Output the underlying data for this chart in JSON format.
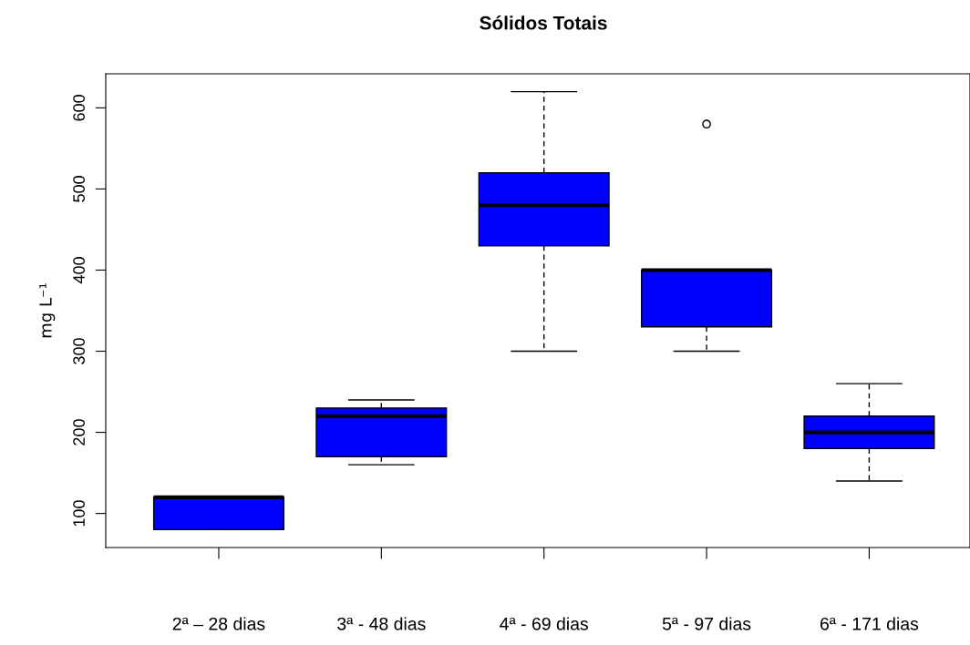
{
  "chart_data": {
    "type": "box",
    "title": "Sólidos Totais",
    "ylabel": "mg L⁻¹",
    "categories": [
      "2ª – 28 dias",
      "3ª - 48 dias",
      "4ª - 69 dias",
      "5ª - 97 dias",
      "6ª - 171 dias"
    ],
    "color": "#0000ff",
    "boxes": [
      {
        "low": 80,
        "q1": 80,
        "median": 120,
        "q3": 120,
        "high": 120
      },
      {
        "low": 160,
        "q1": 170,
        "median": 220,
        "q3": 230,
        "high": 240
      },
      {
        "low": 300,
        "q1": 430,
        "median": 480,
        "q3": 520,
        "high": 620
      },
      {
        "low": 300,
        "q1": 330,
        "median": 400,
        "q3": 400,
        "high": 400,
        "outliers": [
          580
        ]
      },
      {
        "low": 140,
        "q1": 180,
        "median": 200,
        "q3": 220,
        "high": 260
      }
    ],
    "ylim": [
      58,
      642
    ],
    "yticks": [
      100,
      200,
      300,
      400,
      500,
      600
    ],
    "grid": false
  }
}
